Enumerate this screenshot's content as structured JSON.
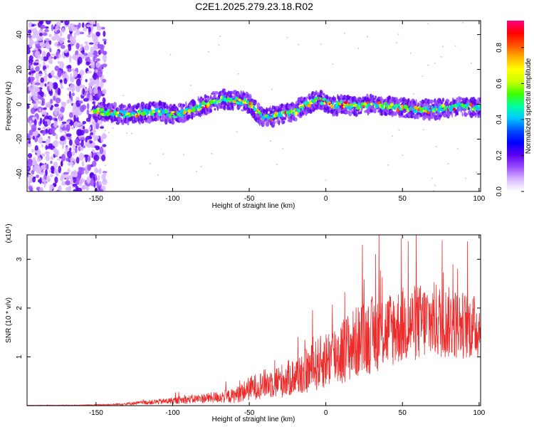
{
  "title": "C2E1.2025.279.23.18.R02",
  "chart_data": [
    {
      "type": "heatmap",
      "title": "C2E1.2025.279.23.18.R02",
      "xlabel": "Height of straight line (km)",
      "ylabel": "Frequency (Hz)",
      "xlim": [
        -195,
        101
      ],
      "ylim": [
        -50,
        48
      ],
      "x_ticks": [
        -150,
        -100,
        -50,
        0,
        50,
        100
      ],
      "x_tick_labels": [
        "-150",
        "-100",
        "-50",
        "0",
        "50",
        "100"
      ],
      "y_ticks": [
        -40,
        -20,
        0,
        20,
        40
      ],
      "y_tick_labels": [
        "-40",
        "-20",
        "0",
        "20",
        "40"
      ],
      "noise_region_x": [
        -195,
        -148
      ],
      "ridge_center": {
        "x": [
          -152,
          -140,
          -130,
          -120,
          -110,
          -100,
          -92,
          -85,
          -78,
          -72,
          -65,
          -58,
          -52,
          -47,
          -43,
          -40,
          -35,
          -30,
          -25,
          -20,
          -15,
          -10,
          -5,
          0,
          5,
          10,
          20,
          30,
          40,
          50,
          60,
          70,
          80,
          90,
          100
        ],
        "freq_hz": [
          -4,
          -5,
          -6,
          -5,
          -4,
          -6,
          -5,
          -2,
          0,
          2,
          3,
          2,
          1,
          -2,
          -6,
          -8,
          -7,
          -6,
          -5,
          -4,
          -1,
          1,
          3,
          1,
          -1,
          0,
          -1,
          0,
          -1,
          -2,
          -3,
          -3,
          -2,
          -1,
          -2
        ]
      },
      "colorbar": {
        "label": "Normalized spectral amplitude",
        "range": [
          0.0,
          0.95
        ],
        "ticks": [
          0.0,
          0.2,
          0.4,
          0.6,
          0.8
        ],
        "tick_labels": [
          "0.0",
          "0.2",
          "0.4",
          "0.6",
          "0.8"
        ],
        "colors": [
          "#ffffff",
          "#d8b8ff",
          "#9a4dff",
          "#5b00f0",
          "#0000ff",
          "#0050ff",
          "#00c8ff",
          "#00ffa0",
          "#40ff00",
          "#c8ff00",
          "#ffff00",
          "#ffb000",
          "#ff5000",
          "#ff0000",
          "#ff0080"
        ]
      }
    },
    {
      "type": "line",
      "title": "",
      "xlabel": "Height of straight line (km)",
      "ylabel": "SNR (10 * v/v)",
      "y_scale_label": "(x10⁴)",
      "xlim": [
        -195,
        101
      ],
      "ylim": [
        0,
        3.5
      ],
      "x_ticks": [
        -150,
        -100,
        -50,
        0,
        50,
        100
      ],
      "x_tick_labels": [
        "-150",
        "-100",
        "-50",
        "0",
        "50",
        "100"
      ],
      "y_ticks": [
        1,
        2,
        3
      ],
      "y_tick_labels": [
        "1",
        "2",
        "3"
      ],
      "series": [
        {
          "name": "SNR",
          "color": "#ee2b2b",
          "envelope": {
            "x": [
              -195,
              -160,
              -140,
              -120,
              -100,
              -80,
              -60,
              -50,
              -40,
              -30,
              -20,
              -10,
              0,
              10,
              20,
              30,
              40,
              50,
              60,
              70,
              80,
              90,
              100
            ],
            "mean": [
              0.005,
              0.01,
              0.02,
              0.06,
              0.1,
              0.15,
              0.2,
              0.35,
              0.45,
              0.5,
              0.6,
              0.75,
              0.95,
              1.1,
              1.3,
              1.45,
              1.55,
              1.65,
              1.7,
              1.75,
              1.7,
              1.65,
              1.6
            ],
            "amplitude": [
              0.003,
              0.005,
              0.015,
              0.04,
              0.07,
              0.1,
              0.15,
              0.25,
              0.3,
              0.35,
              0.4,
              0.5,
              0.6,
              0.7,
              0.75,
              0.8,
              0.8,
              0.8,
              0.8,
              0.8,
              0.75,
              0.7,
              0.65
            ]
          }
        }
      ]
    }
  ]
}
